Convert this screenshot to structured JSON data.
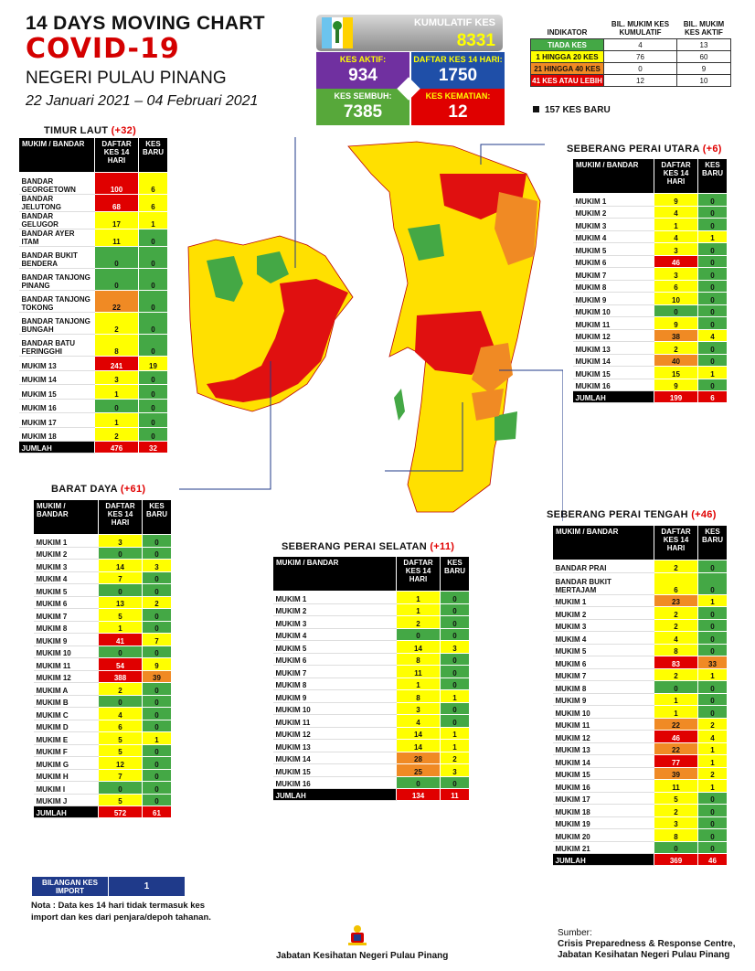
{
  "header": {
    "line1": "14  DAYS MOVING CHART",
    "line2": "COVID-19",
    "line3": "NEGERI PULAU PINANG",
    "line4": "22 Januari 2021 – 04 Februari 2021"
  },
  "summary": {
    "kumulatif_label": "KUMULATIF KES",
    "kumulatif_value": "8331",
    "aktif_label": "KES AKTIF:",
    "aktif_value": "934",
    "daftar_label": "DAFTAR KES 14 HARI:",
    "daftar_value": "1750",
    "sembuh_label": "KES SEMBUH:",
    "sembuh_value": "7385",
    "kematian_label": "KES KEMATIAN:",
    "kematian_value": "12"
  },
  "legend": {
    "headers": [
      "INDIKATOR",
      "BIL. MUKIM KES KUMULATIF",
      "BIL. MUKIM KES AKTIF"
    ],
    "rows": [
      {
        "label": "TIADA KES",
        "a": "4",
        "b": "13",
        "color": "#44a845"
      },
      {
        "label": "1 HINGGA 20 KES",
        "a": "76",
        "b": "60",
        "color": "#ffff00"
      },
      {
        "label": "21 HINGGA 40 KES",
        "a": "0",
        "b": "9",
        "color": "#f08a24"
      },
      {
        "label": "41 KES ATAU LEBIH",
        "a": "12",
        "b": "10",
        "color": "#e00000"
      }
    ],
    "new_cases": "157 KES BARU"
  },
  "chart_data": {
    "type": "table",
    "tables": [
      {
        "id": "timur",
        "title": "TIMUR LAUT ",
        "change": "(+32)",
        "headers": [
          "MUKIM / BANDAR",
          "DAFTAR KES 14 HARI",
          "KES BARU"
        ],
        "rows": [
          [
            "BANDAR GEORGETOWN",
            "100",
            "6"
          ],
          [
            "BANDAR JELUTONG",
            "68",
            "6"
          ],
          [
            "BANDAR GELUGOR",
            "17",
            "1"
          ],
          [
            "BANDAR AYER ITAM",
            "11",
            "0"
          ],
          [
            "BANDAR BUKIT BENDERA",
            "0",
            "0"
          ],
          [
            "BANDAR TANJONG PINANG",
            "0",
            "0"
          ],
          [
            "BANDAR TANJONG TOKONG",
            "22",
            "0"
          ],
          [
            "BANDAR TANJONG BUNGAH",
            "2",
            "0"
          ],
          [
            "BANDAR BATU FERINGGHI",
            "8",
            "0"
          ],
          [
            "MUKIM 13",
            "241",
            "19"
          ],
          [
            "MUKIM 14",
            "3",
            "0"
          ],
          [
            "MUKIM 15",
            "1",
            "0"
          ],
          [
            "MUKIM 16",
            "0",
            "0"
          ],
          [
            "MUKIM 17",
            "1",
            "0"
          ],
          [
            "MUKIM 18",
            "2",
            "0"
          ]
        ],
        "total": [
          "JUMLAH",
          "476",
          "32"
        ]
      },
      {
        "id": "barat",
        "title": "BARAT DAYA ",
        "change": "(+61)",
        "headers": [
          "MUKIM / BANDAR",
          "DAFTAR KES 14 HARI",
          "KES BARU"
        ],
        "rows": [
          [
            "MUKIM 1",
            "3",
            "0"
          ],
          [
            "MUKIM 2",
            "0",
            "0"
          ],
          [
            "MUKIM 3",
            "14",
            "3"
          ],
          [
            "MUKIM 4",
            "7",
            "0"
          ],
          [
            "MUKIM 5",
            "0",
            "0"
          ],
          [
            "MUKIM 6",
            "13",
            "2"
          ],
          [
            "MUKIM 7",
            "5",
            "0"
          ],
          [
            "MUKIM 8",
            "1",
            "0"
          ],
          [
            "MUKIM 9",
            "41",
            "7"
          ],
          [
            "MUKIM 10",
            "0",
            "0"
          ],
          [
            "MUKIM 11",
            "54",
            "9"
          ],
          [
            "MUKIM 12",
            "388",
            "39"
          ],
          [
            "MUKIM A",
            "2",
            "0"
          ],
          [
            "MUKIM B",
            "0",
            "0"
          ],
          [
            "MUKIM C",
            "4",
            "0"
          ],
          [
            "MUKIM D",
            "6",
            "0"
          ],
          [
            "MUKIM E",
            "5",
            "1"
          ],
          [
            "MUKIM F",
            "5",
            "0"
          ],
          [
            "MUKIM G",
            "12",
            "0"
          ],
          [
            "MUKIM H",
            "7",
            "0"
          ],
          [
            "MUKIM I",
            "0",
            "0"
          ],
          [
            "MUKIM J",
            "5",
            "0"
          ]
        ],
        "total": [
          "JUMLAH",
          "572",
          "61"
        ]
      },
      {
        "id": "spu",
        "title": "SEBERANG PERAI UTARA ",
        "change": "(+6)",
        "headers": [
          "MUKIM / BANDAR",
          "DAFTAR KES 14 HARI",
          "KES BARU"
        ],
        "rows": [
          [
            "MUKIM 1",
            "9",
            "0"
          ],
          [
            "MUKIM 2",
            "4",
            "0"
          ],
          [
            "MUKIM 3",
            "1",
            "0"
          ],
          [
            "MUKIM 4",
            "4",
            "1"
          ],
          [
            "MUKIM 5",
            "3",
            "0"
          ],
          [
            "MUKIM 6",
            "46",
            "0"
          ],
          [
            "MUKIM 7",
            "3",
            "0"
          ],
          [
            "MUKIM 8",
            "6",
            "0"
          ],
          [
            "MUKIM 9",
            "10",
            "0"
          ],
          [
            "MUKIM 10",
            "0",
            "0"
          ],
          [
            "MUKIM 11",
            "9",
            "0"
          ],
          [
            "MUKIM 12",
            "38",
            "4"
          ],
          [
            "MUKIM 13",
            "2",
            "0"
          ],
          [
            "MUKIM 14",
            "40",
            "0"
          ],
          [
            "MUKIM 15",
            "15",
            "1"
          ],
          [
            "MUKIM 16",
            "9",
            "0"
          ]
        ],
        "total": [
          "JUMLAH",
          "199",
          "6"
        ]
      },
      {
        "id": "sps",
        "title": "SEBERANG PERAI SELATAN ",
        "change": "(+11)",
        "headers": [
          "MUKIM / BANDAR",
          "DAFTAR KES 14 HARI",
          "KES BARU"
        ],
        "rows": [
          [
            "MUKIM 1",
            "1",
            "0"
          ],
          [
            "MUKIM 2",
            "1",
            "0"
          ],
          [
            "MUKIM 3",
            "2",
            "0"
          ],
          [
            "MUKIM 4",
            "0",
            "0"
          ],
          [
            "MUKIM 5",
            "14",
            "3"
          ],
          [
            "MUKIM 6",
            "8",
            "0"
          ],
          [
            "MUKIM 7",
            "11",
            "0"
          ],
          [
            "MUKIM 8",
            "1",
            "0"
          ],
          [
            "MUKIM 9",
            "8",
            "1"
          ],
          [
            "MUKIM 10",
            "3",
            "0"
          ],
          [
            "MUKIM 11",
            "4",
            "0"
          ],
          [
            "MUKIM 12",
            "14",
            "1"
          ],
          [
            "MUKIM 13",
            "14",
            "1"
          ],
          [
            "MUKIM 14",
            "28",
            "2"
          ],
          [
            "MUKIM 15",
            "25",
            "3"
          ],
          [
            "MUKIM 16",
            "0",
            "0"
          ]
        ],
        "total": [
          "JUMLAH",
          "134",
          "11"
        ]
      },
      {
        "id": "spt",
        "title": "SEBERANG PERAI TENGAH ",
        "change": "(+46)",
        "headers": [
          "MUKIM / BANDAR",
          "DAFTAR KES 14 HARI",
          "KES BARU"
        ],
        "rows": [
          [
            "BANDAR PRAI",
            "2",
            "0"
          ],
          [
            "BANDAR BUKIT MERTAJAM",
            "6",
            "0"
          ],
          [
            "MUKIM 1",
            "23",
            "1"
          ],
          [
            "MUKIM 2",
            "2",
            "0"
          ],
          [
            "MUKIM 3",
            "2",
            "0"
          ],
          [
            "MUKIM 4",
            "4",
            "0"
          ],
          [
            "MUKIM 5",
            "8",
            "0"
          ],
          [
            "MUKIM 6",
            "83",
            "33"
          ],
          [
            "MUKIM 7",
            "2",
            "1"
          ],
          [
            "MUKIM 8",
            "0",
            "0"
          ],
          [
            "MUKIM 9",
            "1",
            "0"
          ],
          [
            "MUKIM 10",
            "1",
            "0"
          ],
          [
            "MUKIM 11",
            "22",
            "2"
          ],
          [
            "MUKIM 12",
            "46",
            "4"
          ],
          [
            "MUKIM 13",
            "22",
            "1"
          ],
          [
            "MUKIM 14",
            "77",
            "1"
          ],
          [
            "MUKIM 15",
            "39",
            "2"
          ],
          [
            "MUKIM 16",
            "11",
            "1"
          ],
          [
            "MUKIM 17",
            "5",
            "0"
          ],
          [
            "MUKIM 18",
            "2",
            "0"
          ],
          [
            "MUKIM 19",
            "3",
            "0"
          ],
          [
            "MUKIM 20",
            "8",
            "0"
          ],
          [
            "MUKIM 21",
            "0",
            "0"
          ]
        ],
        "total": [
          "JUMLAH",
          "369",
          "46"
        ]
      }
    ]
  },
  "import": {
    "label": "BILANGAN KES IMPORT",
    "value": "1"
  },
  "note": "Nota : Data kes 14 hari tidak termasuk kes import dan kes dari penjara/depoh tahanan.",
  "footer": {
    "dept": "Jabatan Kesihatan Negeri Pulau Pinang",
    "source_label": "Sumber:",
    "source1": "Crisis Preparedness & Response Centre,",
    "source2": "Jabatan Kesihatan Negeri Pulau Pinang"
  }
}
